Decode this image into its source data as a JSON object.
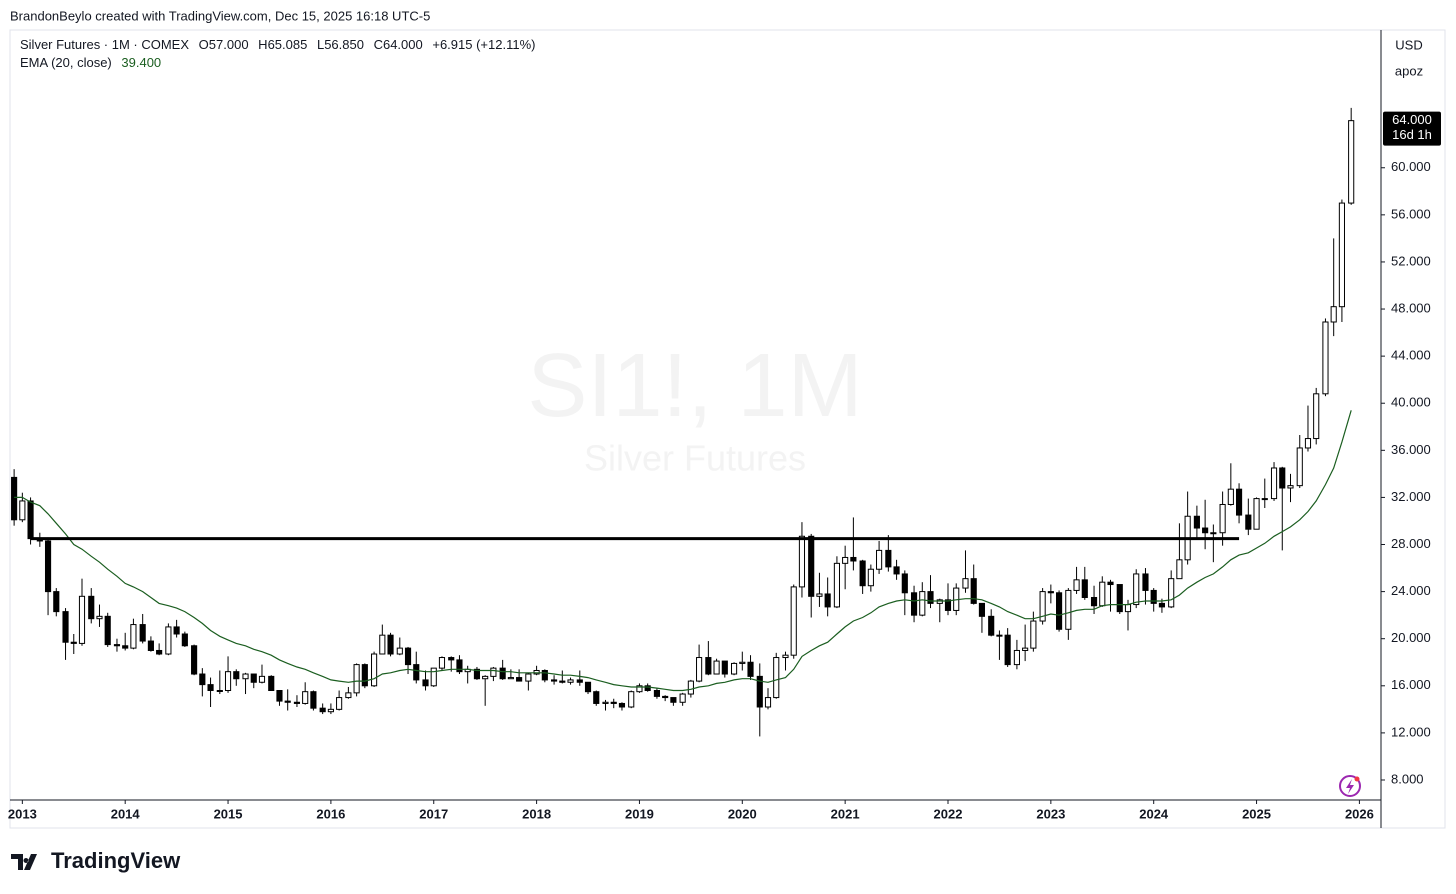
{
  "header": "BrandonBeylo created with TradingView.com, Dec 15, 2025 16:18 UTC-5",
  "footer_logo": "TradingView",
  "right_panel": {
    "currency": "USD",
    "user": "apoz"
  },
  "chart_data": {
    "type": "candlestick",
    "symbol_title": "Silver Futures · 1M · COMEX",
    "ohlc_info": [
      {
        "key": "O",
        "text": "57.000"
      },
      {
        "key": "H",
        "text": "65.085"
      },
      {
        "key": "L",
        "text": "56.850"
      },
      {
        "key": "C",
        "text": "64.000"
      }
    ],
    "change_text": "+6.915 (+12.11%)",
    "watermark": {
      "symbol": "SI1!, 1M",
      "name": "Silver Futures"
    },
    "last_label": "64.000",
    "countdown": "16d 1h",
    "up_color": "#ffffff",
    "down_color": "#000000",
    "border_color": "#000000",
    "xlim": [
      2012.88,
      2026.21
    ],
    "xticks": [
      2013,
      2014,
      2015,
      2016,
      2017,
      2018,
      2019,
      2020,
      2021,
      2022,
      2023,
      2024,
      2025,
      2026
    ],
    "ylim": [
      6.3,
      71.7
    ],
    "yticks": [
      {
        "value": 8,
        "label": "8.000"
      },
      {
        "value": 12,
        "label": "12.000"
      },
      {
        "value": 16,
        "label": "16.000"
      },
      {
        "value": 20,
        "label": "20.000"
      },
      {
        "value": 24,
        "label": "24.000"
      },
      {
        "value": 28,
        "label": "28.000"
      },
      {
        "value": 32,
        "label": "32.000"
      },
      {
        "value": 36,
        "label": "36.000"
      },
      {
        "value": 40,
        "label": "40.000"
      },
      {
        "value": 44,
        "label": "44.000"
      },
      {
        "value": 48,
        "label": "48.000"
      },
      {
        "value": 52,
        "label": "52.000"
      },
      {
        "value": 56,
        "label": "56.000"
      },
      {
        "value": 60,
        "label": "60.000"
      }
    ],
    "hline": {
      "value": 28.5,
      "x": [
        2013.08,
        2024.83
      ],
      "color": "#000000"
    },
    "x": [
      2012.92,
      2013,
      2013.08,
      2013.17,
      2013.25,
      2013.33,
      2013.42,
      2013.5,
      2013.58,
      2013.67,
      2013.75,
      2013.83,
      2013.92,
      2014,
      2014.08,
      2014.17,
      2014.25,
      2014.33,
      2014.42,
      2014.5,
      2014.58,
      2014.67,
      2014.75,
      2014.83,
      2014.92,
      2015,
      2015.08,
      2015.17,
      2015.25,
      2015.33,
      2015.42,
      2015.5,
      2015.58,
      2015.67,
      2015.75,
      2015.83,
      2015.92,
      2016,
      2016.08,
      2016.17,
      2016.25,
      2016.33,
      2016.42,
      2016.5,
      2016.58,
      2016.67,
      2016.75,
      2016.83,
      2016.92,
      2017,
      2017.08,
      2017.17,
      2017.25,
      2017.33,
      2017.42,
      2017.5,
      2017.58,
      2017.67,
      2017.75,
      2017.83,
      2017.92,
      2018,
      2018.08,
      2018.17,
      2018.25,
      2018.33,
      2018.42,
      2018.5,
      2018.58,
      2018.67,
      2018.75,
      2018.83,
      2018.92,
      2019,
      2019.08,
      2019.17,
      2019.25,
      2019.33,
      2019.42,
      2019.5,
      2019.58,
      2019.67,
      2019.75,
      2019.83,
      2019.92,
      2020,
      2020.08,
      2020.17,
      2020.25,
      2020.33,
      2020.42,
      2020.5,
      2020.58,
      2020.67,
      2020.75,
      2020.83,
      2020.92,
      2021,
      2021.08,
      2021.17,
      2021.25,
      2021.33,
      2021.42,
      2021.5,
      2021.58,
      2021.67,
      2021.75,
      2021.83,
      2021.92,
      2022,
      2022.08,
      2022.17,
      2022.25,
      2022.33,
      2022.42,
      2022.5,
      2022.58,
      2022.67,
      2022.75,
      2022.83,
      2022.92,
      2023,
      2023.08,
      2023.17,
      2023.25,
      2023.33,
      2023.42,
      2023.5,
      2023.58,
      2023.67,
      2023.75,
      2023.83,
      2023.92,
      2024,
      2024.08,
      2024.17,
      2024.25,
      2024.33,
      2024.42,
      2024.5,
      2024.58,
      2024.67,
      2024.75,
      2024.83,
      2024.92,
      2025,
      2025.08,
      2025.17,
      2025.25,
      2025.33,
      2025.42,
      2025.5,
      2025.58,
      2025.67,
      2025.75,
      2025.83,
      2025.92
    ],
    "open": [
      33.7,
      30.1,
      31.7,
      28.5,
      28.3,
      24.0,
      22.3,
      19.7,
      19.6,
      23.6,
      21.7,
      21.9,
      19.5,
      19.4,
      19.2,
      21.2,
      19.8,
      19.0,
      18.7,
      21.0,
      20.4,
      19.4,
      17.0,
      16.1,
      15.6,
      15.6,
      17.2,
      16.6,
      17.0,
      16.3,
      16.8,
      15.6,
      14.7,
      14.6,
      14.5,
      15.5,
      14.1,
      13.8,
      14.0,
      15.0,
      15.4,
      17.8,
      16.0,
      18.7,
      20.3,
      18.7,
      19.2,
      17.8,
      16.5,
      16.0,
      17.5,
      18.4,
      18.2,
      17.2,
      17.4,
      16.6,
      16.8,
      17.5,
      16.6,
      16.7,
      16.4,
      17.0,
      17.3,
      16.5,
      16.4,
      16.3,
      16.5,
      16.3,
      15.5,
      14.5,
      14.6,
      14.5,
      14.2,
      15.5,
      16.0,
      15.6,
      15.1,
      15.0,
      14.6,
      15.3,
      16.4,
      18.4,
      17.0,
      18.1,
      17.0,
      17.9,
      18.0,
      16.8,
      14.2,
      15.0,
      18.4,
      18.6,
      24.4,
      28.7,
      23.6,
      23.8,
      22.7,
      26.4,
      26.9,
      26.6,
      24.5,
      25.9,
      27.5,
      26.1,
      25.5,
      23.9,
      22.0,
      24.0,
      23.0,
      23.3,
      22.4,
      24.3,
      25.1,
      23.0,
      21.9,
      20.3,
      20.3,
      17.8,
      19.0,
      19.2,
      21.5,
      24.0,
      23.9,
      20.8,
      24.1,
      25.0,
      23.5,
      22.8,
      24.8,
      24.6,
      22.3,
      22.9,
      25.5,
      24.1,
      23.0,
      22.7,
      25.1,
      26.7,
      30.4,
      29.4,
      29.0,
      29.0,
      31.4,
      32.7,
      30.5,
      29.3,
      31.9,
      31.9,
      34.5,
      32.8,
      33.0,
      36.2,
      37.0,
      40.8,
      46.9,
      48.2,
      57.0
    ],
    "high": [
      34.4,
      32.4,
      32.0,
      29.0,
      28.6,
      24.3,
      22.6,
      20.4,
      25.1,
      24.3,
      22.9,
      22.2,
      20.0,
      20.5,
      21.7,
      22.1,
      20.2,
      19.6,
      21.3,
      21.6,
      20.6,
      19.5,
      17.5,
      16.7,
      17.3,
      18.5,
      17.4,
      17.1,
      17.0,
      17.8,
      16.9,
      15.6,
      15.7,
      15.2,
      16.3,
      15.6,
      14.5,
      14.5,
      15.6,
      15.9,
      17.9,
      17.9,
      18.9,
      21.2,
      20.5,
      20.1,
      19.3,
      18.9,
      17.3,
      17.5,
      18.5,
      18.5,
      18.6,
      17.7,
      17.6,
      16.9,
      17.6,
      18.2,
      17.4,
      17.4,
      17.1,
      17.7,
      17.4,
      16.9,
      17.3,
      16.7,
      17.3,
      16.0,
      15.6,
      14.8,
      14.9,
      14.6,
      15.6,
      16.2,
      16.2,
      15.8,
      15.2,
      15.0,
      15.4,
      16.5,
      19.5,
      19.8,
      18.3,
      18.1,
      18.0,
      18.9,
      18.6,
      17.9,
      15.8,
      18.8,
      18.9,
      24.6,
      29.9,
      28.9,
      25.6,
      25.2,
      27.0,
      27.9,
      30.3,
      26.7,
      26.3,
      28.3,
      28.8,
      26.7,
      25.8,
      24.5,
      24.8,
      25.4,
      23.4,
      24.7,
      24.7,
      27.5,
      26.3,
      23.0,
      22.5,
      20.7,
      20.9,
      19.9,
      21.2,
      22.3,
      24.3,
      24.6,
      24.1,
      24.3,
      26.1,
      26.1,
      24.5,
      25.3,
      25.0,
      24.6,
      23.3,
      25.9,
      26.0,
      24.3,
      23.4,
      25.8,
      29.8,
      32.5,
      31.3,
      31.8,
      29.7,
      32.5,
      34.9,
      33.2,
      31.9,
      32.0,
      33.6,
      35.0,
      34.6,
      34.0,
      37.3,
      39.8,
      41.3,
      47.2,
      54.0,
      57.3,
      65.085
    ],
    "low": [
      29.6,
      29.9,
      28.0,
      27.8,
      22.0,
      21.9,
      18.2,
      18.7,
      19.4,
      21.3,
      21.0,
      19.3,
      18.9,
      19.0,
      19.1,
      19.6,
      18.9,
      18.6,
      18.6,
      20.1,
      19.3,
      16.9,
      15.1,
      14.2,
      15.3,
      15.4,
      16.0,
      15.3,
      15.8,
      16.2,
      15.6,
      14.3,
      13.9,
      14.2,
      14.4,
      13.9,
      13.6,
      13.6,
      13.9,
      14.9,
      15.1,
      15.8,
      15.9,
      18.7,
      18.5,
      18.6,
      17.0,
      16.2,
      15.6,
      15.9,
      17.3,
      17.2,
      17.0,
      16.2,
      16.5,
      14.3,
      16.4,
      16.5,
      16.6,
      16.4,
      15.6,
      16.9,
      16.3,
      16.1,
      16.2,
      16.1,
      16.0,
      15.3,
      14.3,
      13.9,
      14.1,
      13.9,
      14.1,
      15.4,
      15.5,
      14.9,
      14.7,
      14.3,
      14.3,
      15.0,
      16.3,
      16.9,
      17.0,
      16.7,
      16.9,
      17.3,
      16.5,
      11.7,
      14.0,
      14.9,
      17.3,
      18.3,
      23.5,
      21.8,
      22.7,
      21.9,
      22.6,
      24.2,
      25.8,
      23.8,
      24.0,
      25.5,
      25.7,
      25.0,
      22.0,
      21.4,
      21.9,
      22.6,
      21.4,
      22.0,
      22.0,
      23.9,
      22.9,
      20.5,
      20.2,
      18.2,
      17.6,
      17.4,
      18.1,
      18.9,
      21.2,
      23.0,
      20.6,
      19.9,
      23.8,
      23.3,
      22.1,
      22.7,
      22.3,
      22.1,
      20.7,
      22.6,
      22.9,
      22.3,
      22.2,
      22.6,
      25.2,
      26.3,
      28.6,
      27.6,
      26.5,
      27.9,
      31.3,
      29.8,
      28.8,
      29.5,
      31.1,
      31.7,
      27.5,
      31.6,
      32.8,
      35.9,
      36.5,
      40.6,
      45.7,
      46.9,
      56.85
    ],
    "close": [
      30.1,
      31.7,
      28.5,
      28.3,
      24.0,
      22.3,
      19.7,
      19.6,
      23.6,
      21.7,
      21.9,
      19.5,
      19.4,
      19.2,
      21.2,
      19.8,
      19.0,
      18.7,
      21.0,
      20.4,
      19.4,
      17.0,
      16.1,
      15.6,
      15.6,
      17.2,
      16.6,
      17.0,
      16.3,
      16.8,
      15.6,
      14.7,
      14.6,
      14.5,
      15.5,
      14.1,
      13.8,
      14.0,
      15.0,
      15.4,
      17.8,
      16.0,
      18.7,
      20.3,
      18.7,
      19.2,
      17.8,
      16.5,
      16.0,
      17.5,
      18.4,
      18.2,
      17.2,
      17.4,
      16.6,
      16.8,
      17.5,
      16.6,
      16.7,
      16.4,
      17.0,
      17.3,
      16.5,
      16.4,
      16.3,
      16.5,
      16.3,
      15.5,
      14.5,
      14.6,
      14.5,
      14.2,
      15.5,
      16.0,
      15.6,
      15.1,
      15.0,
      14.6,
      15.3,
      16.4,
      18.4,
      17.0,
      18.1,
      17.0,
      17.9,
      18.0,
      16.8,
      14.2,
      15.0,
      18.4,
      18.6,
      24.4,
      28.7,
      23.6,
      23.8,
      22.7,
      26.4,
      26.9,
      26.6,
      24.5,
      25.9,
      27.5,
      26.1,
      25.5,
      23.9,
      22.0,
      24.0,
      23.0,
      23.3,
      22.4,
      24.3,
      25.1,
      23.0,
      21.9,
      20.3,
      20.3,
      17.8,
      19.0,
      19.2,
      21.5,
      24.0,
      23.9,
      20.8,
      24.1,
      25.0,
      23.5,
      22.8,
      24.8,
      24.6,
      22.3,
      22.9,
      25.5,
      24.1,
      23.0,
      22.7,
      25.1,
      26.7,
      30.4,
      29.4,
      29.0,
      29.0,
      31.4,
      32.7,
      30.5,
      29.3,
      31.9,
      31.9,
      34.5,
      32.8,
      33.0,
      36.2,
      37.0,
      40.8,
      46.9,
      48.2,
      57.0,
      64.0
    ],
    "ema": {
      "name": "EMA (20, close)",
      "value_label": "39.400",
      "color": "#1b5e20",
      "values": [
        32.0,
        32.0,
        31.6,
        31.3,
        30.6,
        29.8,
        28.9,
        28.0,
        27.6,
        27.0,
        26.5,
        25.9,
        25.3,
        24.7,
        24.4,
        24.0,
        23.5,
        23.0,
        22.8,
        22.6,
        22.3,
        21.8,
        21.3,
        20.7,
        20.2,
        19.9,
        19.6,
        19.4,
        19.1,
        18.9,
        18.6,
        18.2,
        17.9,
        17.6,
        17.4,
        17.1,
        16.8,
        16.5,
        16.4,
        16.3,
        16.4,
        16.4,
        16.6,
        17.0,
        17.1,
        17.3,
        17.4,
        17.3,
        17.2,
        17.2,
        17.3,
        17.4,
        17.4,
        17.4,
        17.3,
        17.3,
        17.3,
        17.2,
        17.2,
        17.1,
        17.1,
        17.1,
        17.1,
        17.0,
        16.9,
        16.9,
        16.8,
        16.7,
        16.5,
        16.3,
        16.1,
        16.0,
        15.9,
        15.9,
        15.9,
        15.8,
        15.7,
        15.6,
        15.6,
        15.7,
        15.9,
        16.0,
        16.2,
        16.3,
        16.5,
        16.6,
        16.6,
        16.4,
        16.3,
        16.5,
        16.7,
        17.4,
        18.5,
        19.0,
        19.4,
        19.7,
        20.4,
        21.0,
        21.5,
        21.8,
        22.2,
        22.7,
        23.0,
        23.2,
        23.3,
        23.2,
        23.3,
        23.2,
        23.2,
        23.2,
        23.3,
        23.4,
        23.4,
        23.3,
        23.0,
        22.7,
        22.3,
        22.0,
        21.7,
        21.7,
        21.9,
        22.1,
        22.0,
        22.2,
        22.4,
        22.5,
        22.5,
        22.8,
        22.9,
        22.9,
        22.9,
        23.1,
        23.2,
        23.2,
        23.2,
        23.3,
        23.7,
        24.3,
        24.8,
        25.2,
        25.5,
        26.1,
        26.7,
        27.1,
        27.3,
        27.7,
        28.1,
        28.7,
        29.1,
        29.5,
        30.1,
        30.8,
        31.7,
        33.1,
        34.5,
        36.7,
        39.4
      ]
    }
  }
}
